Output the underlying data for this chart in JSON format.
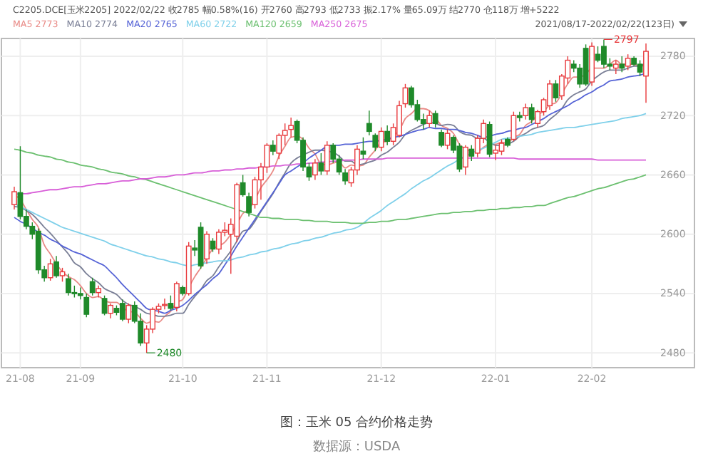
{
  "chart_data": {
    "type": "candlestick",
    "title": "图：玉米 05 合约价格走势",
    "subtitle": "C2205.DCE[玉米2205]   2022/02/22   收2785   幅0.58%(16)   开2760   高2793   低2733   振2.17%   量65.09万   结2770   仓118万   增+5222",
    "annotations": [
      "2021/08/17-2022/02/22(123日)",
      "数据源：USDA",
      "2797",
      "2480"
    ],
    "categories": [
      null,
      "21-08",
      null,
      null,
      null,
      null,
      null,
      null,
      null,
      null,
      null,
      "21-09",
      null,
      null,
      null,
      null,
      null,
      null,
      null,
      null,
      null,
      null,
      null,
      null,
      null,
      null,
      null,
      null,
      "21-10",
      null,
      null,
      null,
      null,
      null,
      null,
      null,
      null,
      null,
      null,
      null,
      null,
      null,
      "21-11",
      null,
      null,
      null,
      null,
      null,
      null,
      null,
      null,
      null,
      null,
      null,
      null,
      null,
      null,
      null,
      null,
      null,
      null,
      "21-12",
      null,
      null,
      null,
      null,
      null,
      null,
      null,
      null,
      null,
      null,
      null,
      null,
      null,
      null,
      null,
      null,
      null,
      null,
      "22-01",
      null,
      null,
      null,
      null,
      null,
      null,
      null,
      null,
      null,
      null,
      null,
      null,
      null,
      null,
      null,
      "22-02",
      null,
      null,
      null,
      null,
      null,
      null,
      null,
      null,
      null
    ],
    "ohlc": [
      [
        2630,
        2648,
        2625,
        2643
      ],
      [
        2642,
        2689,
        2615,
        2618
      ],
      [
        2618,
        2625,
        2605,
        2608
      ],
      [
        2608,
        2612,
        2595,
        2600
      ],
      [
        2603,
        2606,
        2560,
        2564
      ],
      [
        2564,
        2568,
        2552,
        2556
      ],
      [
        2556,
        2575,
        2553,
        2570
      ],
      [
        2572,
        2578,
        2556,
        2558
      ],
      [
        2558,
        2566,
        2552,
        2562
      ],
      [
        2555,
        2560,
        2538,
        2541
      ],
      [
        2541,
        2548,
        2536,
        2540
      ],
      [
        2540,
        2546,
        2534,
        2538
      ],
      [
        2536,
        2540,
        2516,
        2519
      ],
      [
        2552,
        2556,
        2538,
        2541
      ],
      [
        2541,
        2548,
        2536,
        2545
      ],
      [
        2535,
        2538,
        2518,
        2520
      ],
      [
        2520,
        2530,
        2515,
        2528
      ],
      [
        2525,
        2528,
        2518,
        2521
      ],
      [
        2530,
        2534,
        2512,
        2514
      ],
      [
        2514,
        2530,
        2510,
        2528
      ],
      [
        2528,
        2532,
        2510,
        2512
      ],
      [
        2512,
        2520,
        2487,
        2490
      ],
      [
        2490,
        2508,
        2480,
        2504
      ],
      [
        2504,
        2526,
        2500,
        2524
      ],
      [
        2524,
        2530,
        2520,
        2527
      ],
      [
        2528,
        2535,
        2524,
        2529
      ],
      [
        2530,
        2538,
        2523,
        2525
      ],
      [
        2526,
        2552,
        2522,
        2550
      ],
      [
        2546,
        2548,
        2538,
        2540
      ],
      [
        2540,
        2592,
        2538,
        2588
      ],
      [
        2586,
        2594,
        2578,
        2584
      ],
      [
        2607,
        2612,
        2565,
        2568
      ],
      [
        2575,
        2603,
        2570,
        2600
      ],
      [
        2593,
        2596,
        2582,
        2585
      ],
      [
        2585,
        2605,
        2580,
        2602
      ],
      [
        2602,
        2612,
        2598,
        2604
      ],
      [
        2600,
        2616,
        2560,
        2610
      ],
      [
        2598,
        2652,
        2592,
        2650
      ],
      [
        2652,
        2660,
        2638,
        2640
      ],
      [
        2638,
        2642,
        2618,
        2622
      ],
      [
        2630,
        2658,
        2626,
        2655
      ],
      [
        2655,
        2672,
        2635,
        2668
      ],
      [
        2668,
        2692,
        2662,
        2690
      ],
      [
        2690,
        2695,
        2680,
        2684
      ],
      [
        2682,
        2702,
        2676,
        2700
      ],
      [
        2700,
        2712,
        2690,
        2705
      ],
      [
        2706,
        2718,
        2698,
        2710
      ],
      [
        2714,
        2716,
        2692,
        2695
      ],
      [
        2695,
        2698,
        2664,
        2668
      ],
      [
        2668,
        2672,
        2654,
        2658
      ],
      [
        2660,
        2676,
        2655,
        2672
      ],
      [
        2672,
        2682,
        2660,
        2664
      ],
      [
        2664,
        2694,
        2660,
        2690
      ],
      [
        2690,
        2692,
        2672,
        2676
      ],
      [
        2676,
        2680,
        2660,
        2663
      ],
      [
        2662,
        2666,
        2650,
        2654
      ],
      [
        2652,
        2668,
        2648,
        2665
      ],
      [
        2665,
        2690,
        2660,
        2686
      ],
      [
        2684,
        2698,
        2676,
        2681
      ],
      [
        2712,
        2725,
        2700,
        2704
      ],
      [
        2700,
        2702,
        2684,
        2688
      ],
      [
        2688,
        2708,
        2684,
        2704
      ],
      [
        2704,
        2710,
        2690,
        2694
      ],
      [
        2694,
        2712,
        2690,
        2708
      ],
      [
        2700,
        2735,
        2698,
        2730
      ],
      [
        2732,
        2752,
        2728,
        2748
      ],
      [
        2748,
        2750,
        2728,
        2731
      ],
      [
        2731,
        2736,
        2714,
        2716
      ],
      [
        2716,
        2722,
        2706,
        2712
      ],
      [
        2712,
        2725,
        2708,
        2720
      ],
      [
        2722,
        2725,
        2708,
        2712
      ],
      [
        2703,
        2706,
        2688,
        2690
      ],
      [
        2690,
        2706,
        2686,
        2702
      ],
      [
        2698,
        2700,
        2682,
        2685
      ],
      [
        2689,
        2692,
        2663,
        2666
      ],
      [
        2668,
        2690,
        2660,
        2688
      ],
      [
        2686,
        2690,
        2674,
        2679
      ],
      [
        2682,
        2700,
        2678,
        2697
      ],
      [
        2697,
        2716,
        2692,
        2712
      ],
      [
        2711,
        2714,
        2678,
        2681
      ],
      [
        2682,
        2690,
        2675,
        2685
      ],
      [
        2684,
        2696,
        2680,
        2692
      ],
      [
        2696,
        2698,
        2688,
        2690
      ],
      [
        2696,
        2724,
        2694,
        2720
      ],
      [
        2720,
        2724,
        2714,
        2718
      ],
      [
        2720,
        2732,
        2716,
        2728
      ],
      [
        2728,
        2732,
        2712,
        2716
      ],
      [
        2712,
        2726,
        2708,
        2724
      ],
      [
        2724,
        2738,
        2720,
        2736
      ],
      [
        2730,
        2756,
        2726,
        2752
      ],
      [
        2752,
        2756,
        2734,
        2738
      ],
      [
        2740,
        2762,
        2736,
        2760
      ],
      [
        2758,
        2780,
        2752,
        2776
      ],
      [
        2772,
        2776,
        2764,
        2768
      ],
      [
        2768,
        2772,
        2748,
        2752
      ],
      [
        2788,
        2792,
        2750,
        2752
      ],
      [
        2754,
        2794,
        2750,
        2790
      ],
      [
        2782,
        2790,
        2774,
        2776
      ],
      [
        2790,
        2797,
        2768,
        2772
      ],
      [
        2772,
        2778,
        2766,
        2770
      ],
      [
        2768,
        2776,
        2762,
        2772
      ],
      [
        2772,
        2780,
        2764,
        2768
      ],
      [
        2770,
        2782,
        2766,
        2778
      ],
      [
        2778,
        2780,
        2770,
        2772
      ],
      [
        2772,
        2776,
        2760,
        2764
      ],
      [
        2760,
        2793,
        2733,
        2785
      ]
    ],
    "colors": [
      "#e8393c",
      "#1f8a2a",
      "#1f8a2a",
      "#1f8a2a",
      "#1f8a2a",
      "#1f8a2a",
      "#e8393c",
      "#1f8a2a",
      "#e8393c",
      "#1f8a2a",
      "#1f8a2a",
      "#1f8a2a",
      "#1f8a2a",
      "#1f8a2a",
      "#e8393c",
      "#1f8a2a",
      "#e8393c",
      "#1f8a2a",
      "#1f8a2a",
      "#e8393c",
      "#1f8a2a",
      "#1f8a2a",
      "#e8393c",
      "#e8393c",
      "#e8393c",
      "#e8393c",
      "#1f8a2a",
      "#e8393c",
      "#1f8a2a",
      "#e8393c",
      "#1f8a2a",
      "#1f8a2a",
      "#e8393c",
      "#1f8a2a",
      "#e8393c",
      "#e8393c",
      "#e8393c",
      "#e8393c",
      "#1f8a2a",
      "#1f8a2a",
      "#e8393c",
      "#e8393c",
      "#e8393c",
      "#1f8a2a",
      "#e8393c",
      "#e8393c",
      "#e8393c",
      "#1f8a2a",
      "#1f8a2a",
      "#1f8a2a",
      "#e8393c",
      "#1f8a2a",
      "#e8393c",
      "#1f8a2a",
      "#1f8a2a",
      "#1f8a2a",
      "#e8393c",
      "#e8393c",
      "#1f8a2a",
      "#1f8a2a",
      "#1f8a2a",
      "#e8393c",
      "#1f8a2a",
      "#e8393c",
      "#e8393c",
      "#e8393c",
      "#1f8a2a",
      "#1f8a2a",
      "#1f8a2a",
      "#e8393c",
      "#1f8a2a",
      "#1f8a2a",
      "#e8393c",
      "#1f8a2a",
      "#1f8a2a",
      "#e8393c",
      "#1f8a2a",
      "#e8393c",
      "#e8393c",
      "#1f8a2a",
      "#e8393c",
      "#e8393c",
      "#1f8a2a",
      "#e8393c",
      "#1f8a2a",
      "#e8393c",
      "#1f8a2a",
      "#e8393c",
      "#e8393c",
      "#e8393c",
      "#1f8a2a",
      "#e8393c",
      "#e8393c",
      "#1f8a2a",
      "#1f8a2a",
      "#1f8a2a",
      "#e8393c",
      "#1f8a2a",
      "#1f8a2a",
      "#1f8a2a",
      "#e8393c",
      "#1f8a2a",
      "#e8393c",
      "#1f8a2a",
      "#1f8a2a",
      "#e8393c"
    ],
    "series": [
      {
        "type": "line",
        "name": "MA5 2773",
        "color": "#e98a86",
        "values": [
          2640,
          2635,
          2625,
          2615,
          2607,
          2589,
          2580,
          2570,
          2562,
          2557,
          2554,
          2548,
          2540,
          2536,
          2537,
          2533,
          2531,
          2531,
          2526,
          2522,
          2521,
          2515,
          2510,
          2512,
          2511,
          2517,
          2522,
          2531,
          2534,
          2546,
          2557,
          2566,
          2576,
          2585,
          2588,
          2592,
          2600,
          2610,
          2621,
          2625,
          2635,
          2647,
          2655,
          2664,
          2679,
          2689,
          2698,
          2699,
          2696,
          2687,
          2681,
          2671,
          2670,
          2672,
          2673,
          2667,
          2670,
          2669,
          2670,
          2678,
          2685,
          2693,
          2694,
          2700,
          2705,
          2717,
          2722,
          2727,
          2727,
          2725,
          2718,
          2710,
          2707,
          2702,
          2691,
          2686,
          2684,
          2683,
          2688,
          2691,
          2691,
          2693,
          2692,
          2698,
          2701,
          2710,
          2714,
          2721,
          2724,
          2731,
          2733,
          2742,
          2752,
          2759,
          2759,
          2762,
          2768,
          2768,
          2768,
          2772,
          2776,
          2772,
          2772,
          2772,
          2769,
          2773
        ]
      },
      {
        "type": "line",
        "name": "MA10 2774",
        "color": "#7a7f96",
        "values": [
          2628,
          2627,
          2624,
          2620,
          2614,
          2607,
          2601,
          2594,
          2587,
          2580,
          2571,
          2567,
          2560,
          2555,
          2551,
          2545,
          2542,
          2539,
          2533,
          2529,
          2527,
          2524,
          2520,
          2519,
          2517,
          2517,
          2518,
          2520,
          2520,
          2529,
          2537,
          2544,
          2553,
          2558,
          2567,
          2575,
          2583,
          2593,
          2603,
          2605,
          2613,
          2623,
          2632,
          2641,
          2652,
          2662,
          2672,
          2677,
          2680,
          2683,
          2685,
          2685,
          2684,
          2683,
          2679,
          2674,
          2674,
          2670,
          2671,
          2673,
          2675,
          2680,
          2683,
          2688,
          2693,
          2701,
          2705,
          2708,
          2711,
          2713,
          2712,
          2710,
          2711,
          2710,
          2704,
          2701,
          2700,
          2697,
          2697,
          2693,
          2690,
          2690,
          2691,
          2694,
          2699,
          2702,
          2706,
          2708,
          2710,
          2716,
          2721,
          2727,
          2736,
          2741,
          2744,
          2747,
          2755,
          2760,
          2764,
          2766,
          2766,
          2766,
          2768,
          2770,
          2770,
          2774
        ]
      },
      {
        "type": "line",
        "name": "MA20 2765",
        "color": "#5563d6",
        "values": [
          2617,
          2613,
          2610,
          2606,
          2602,
          2599,
          2595,
          2592,
          2588,
          2585,
          2582,
          2580,
          2577,
          2574,
          2571,
          2568,
          2562,
          2556,
          2549,
          2543,
          2537,
          2531,
          2525,
          2523,
          2522,
          2520,
          2523,
          2525,
          2528,
          2533,
          2539,
          2544,
          2549,
          2555,
          2560,
          2569,
          2578,
          2588,
          2597,
          2606,
          2615,
          2624,
          2633,
          2642,
          2651,
          2660,
          2664,
          2668,
          2672,
          2677,
          2681,
          2685,
          2689,
          2690,
          2690,
          2691,
          2691,
          2692,
          2693,
          2694,
          2694,
          2695,
          2696,
          2698,
          2699,
          2701,
          2703,
          2705,
          2706,
          2708,
          2707,
          2707,
          2706,
          2706,
          2705,
          2703,
          2702,
          2700,
          2698,
          2699,
          2701,
          2702,
          2704,
          2705,
          2707,
          2708,
          2711,
          2714,
          2717,
          2721,
          2724,
          2727,
          2730,
          2734,
          2737,
          2741,
          2744,
          2748,
          2751,
          2755,
          2756,
          2757,
          2759,
          2760,
          2761,
          2763
        ]
      },
      {
        "type": "line",
        "name": "MA60 2722",
        "color": "#7fd0ea",
        "values": [
          2631,
          2628,
          2625,
          2622,
          2619,
          2616,
          2613,
          2610,
          2607,
          2605,
          2603,
          2601,
          2599,
          2597,
          2595,
          2593,
          2590,
          2588,
          2586,
          2584,
          2582,
          2580,
          2578,
          2577,
          2575,
          2574,
          2572,
          2571,
          2569,
          2568,
          2569,
          2570,
          2571,
          2572,
          2573,
          2573,
          2574,
          2576,
          2577,
          2579,
          2580,
          2582,
          2583,
          2585,
          2586,
          2588,
          2590,
          2591,
          2593,
          2594,
          2596,
          2597,
          2599,
          2601,
          2602,
          2604,
          2605,
          2607,
          2611,
          2616,
          2620,
          2624,
          2629,
          2633,
          2637,
          2641,
          2646,
          2650,
          2654,
          2657,
          2661,
          2665,
          2669,
          2672,
          2676,
          2679,
          2682,
          2685,
          2687,
          2690,
          2693,
          2696,
          2697,
          2698,
          2699,
          2700,
          2701,
          2703,
          2704,
          2705,
          2706,
          2707,
          2708,
          2708,
          2709,
          2710,
          2711,
          2712,
          2713,
          2714,
          2715,
          2717,
          2718,
          2719,
          2720,
          2722
        ]
      },
      {
        "type": "line",
        "name": "MA120 2659",
        "color": "#6cc070",
        "values": [
          2686,
          2685,
          2683,
          2682,
          2680,
          2679,
          2678,
          2676,
          2675,
          2673,
          2672,
          2670,
          2669,
          2668,
          2666,
          2665,
          2663,
          2662,
          2661,
          2659,
          2658,
          2656,
          2655,
          2653,
          2651,
          2649,
          2647,
          2645,
          2643,
          2641,
          2639,
          2637,
          2635,
          2633,
          2631,
          2629,
          2627,
          2625,
          2623,
          2621,
          2619,
          2617,
          2617,
          2616,
          2616,
          2615,
          2615,
          2615,
          2614,
          2614,
          2613,
          2613,
          2613,
          2612,
          2612,
          2612,
          2611,
          2611,
          2611,
          2612,
          2612,
          2613,
          2613,
          2614,
          2615,
          2615,
          2616,
          2617,
          2618,
          2619,
          2620,
          2621,
          2621,
          2622,
          2622,
          2623,
          2623,
          2624,
          2624,
          2625,
          2625,
          2626,
          2626,
          2627,
          2627,
          2628,
          2628,
          2629,
          2629,
          2631,
          2633,
          2635,
          2637,
          2638,
          2640,
          2642,
          2644,
          2646,
          2647,
          2649,
          2651,
          2653,
          2655,
          2656,
          2658,
          2660
        ]
      },
      {
        "type": "line",
        "name": "MA250 2675",
        "color": "#d85fd8",
        "values": [
          2640,
          2641,
          2641,
          2642,
          2643,
          2644,
          2645,
          2645,
          2646,
          2647,
          2648,
          2648,
          2649,
          2650,
          2651,
          2651,
          2652,
          2653,
          2654,
          2654,
          2655,
          2656,
          2656,
          2657,
          2658,
          2658,
          2659,
          2660,
          2660,
          2661,
          2662,
          2662,
          2663,
          2664,
          2664,
          2665,
          2665,
          2666,
          2666,
          2667,
          2667,
          2668,
          2668,
          2669,
          2669,
          2670,
          2670,
          2671,
          2671,
          2672,
          2672,
          2673,
          2673,
          2674,
          2674,
          2675,
          2675,
          2675,
          2676,
          2676,
          2676,
          2676,
          2677,
          2677,
          2677,
          2677,
          2677,
          2677,
          2677,
          2677,
          2677,
          2677,
          2677,
          2677,
          2677,
          2677,
          2677,
          2677,
          2677,
          2677,
          2677,
          2677,
          2677,
          2677,
          2676,
          2676,
          2676,
          2676,
          2676,
          2676,
          2676,
          2676,
          2676,
          2676,
          2676,
          2676,
          2676,
          2675,
          2675,
          2675,
          2675,
          2675,
          2675,
          2675,
          2675,
          2675
        ]
      }
    ],
    "ylim": [
      2465,
      2798
    ],
    "yticks": [
      2480,
      2540,
      2600,
      2660,
      2720,
      2780
    ],
    "grid": true,
    "legend": "top left",
    "marker": "none"
  }
}
